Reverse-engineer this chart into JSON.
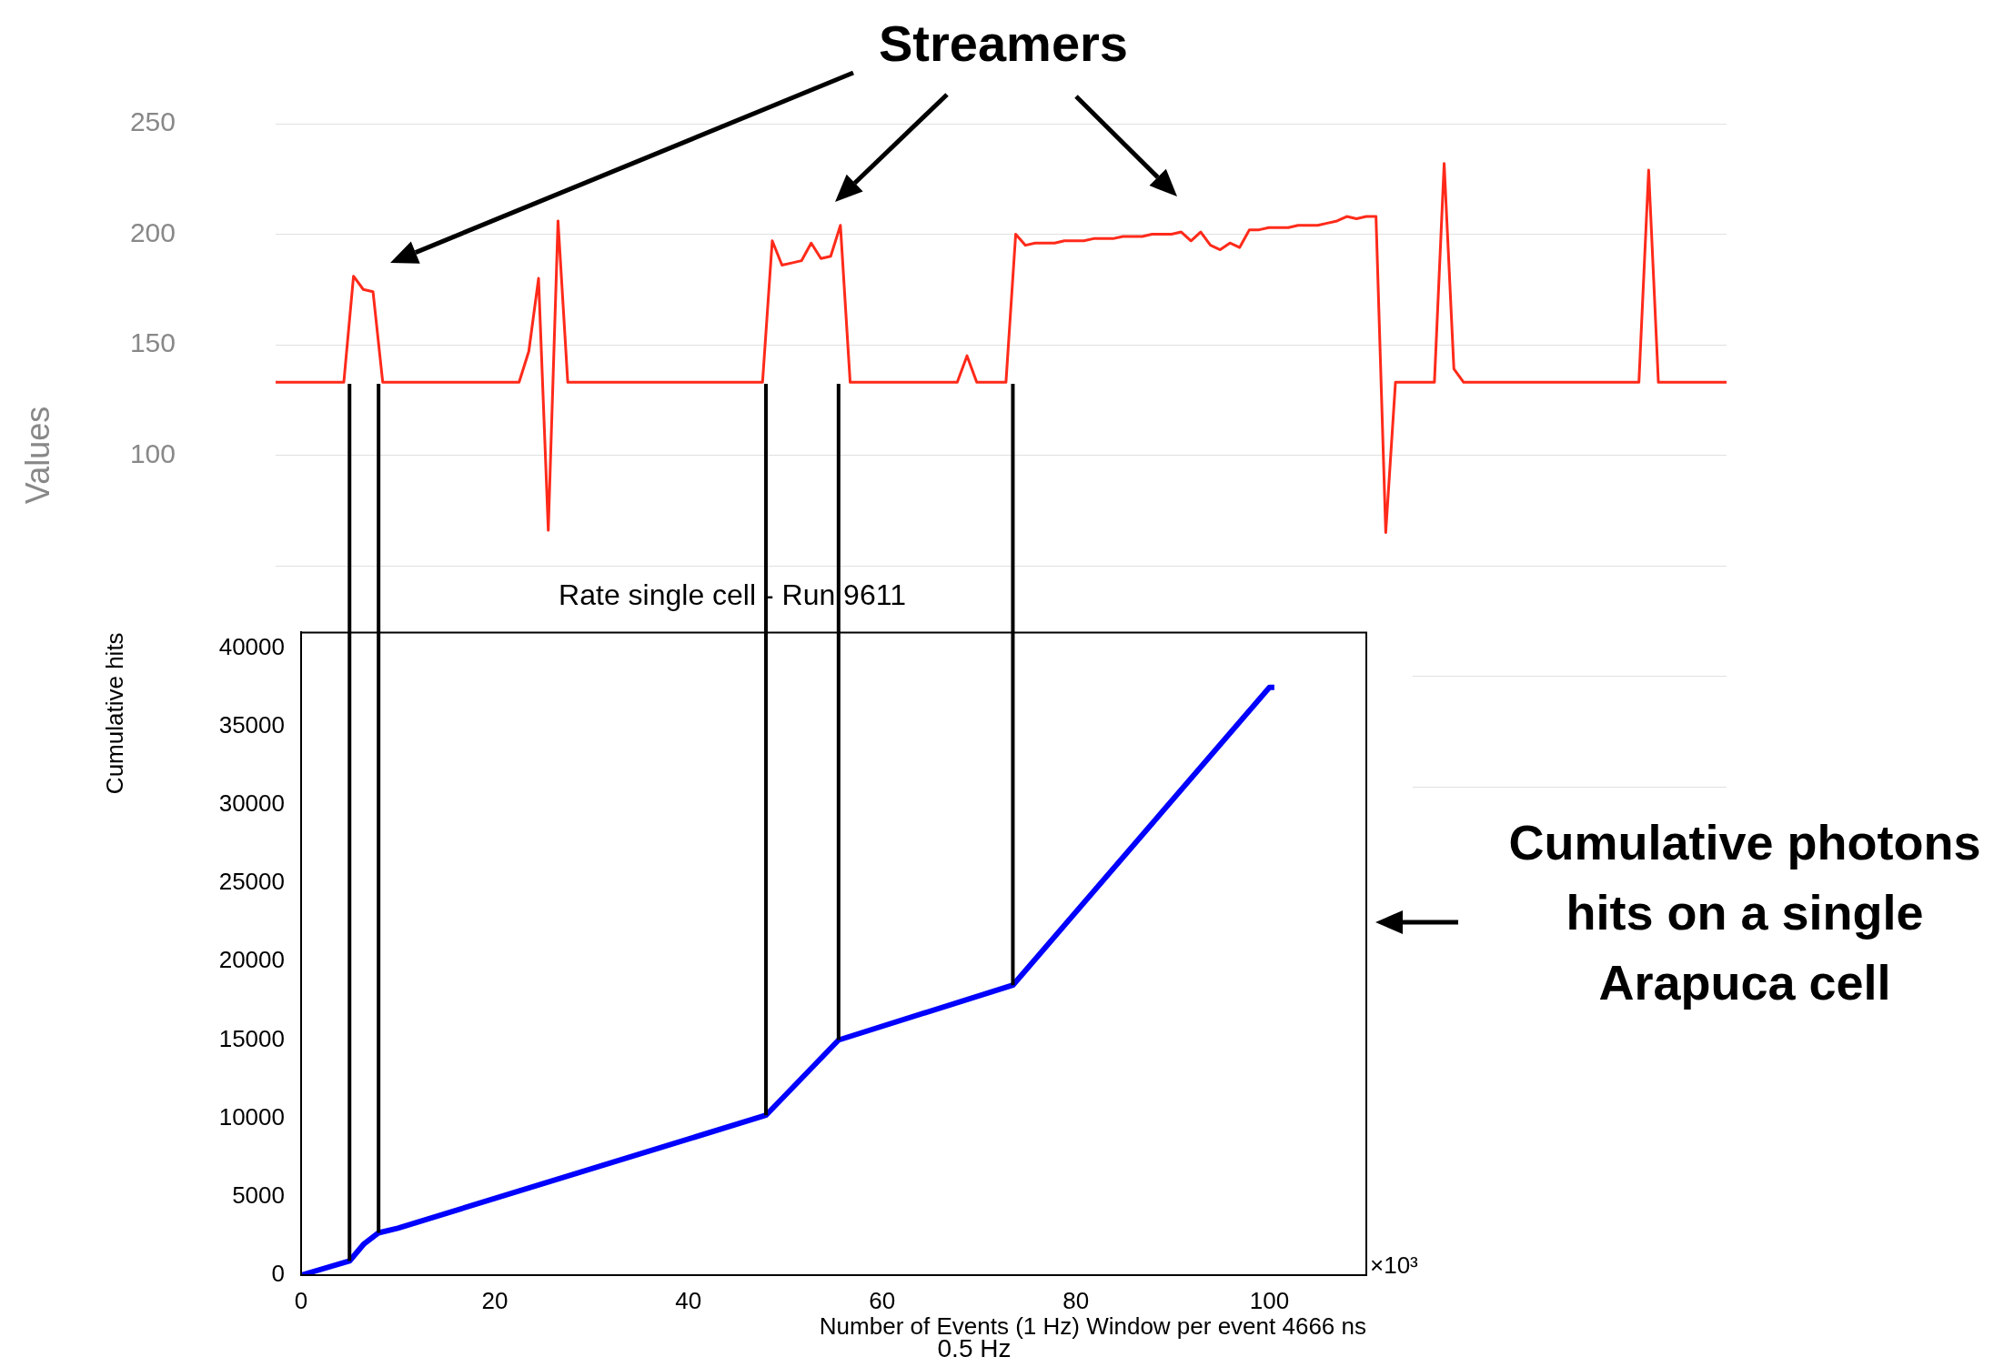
{
  "chart_data": [
    {
      "type": "line",
      "ylabel": "Values",
      "categories": [
        null,
        null,
        null,
        null,
        null,
        null,
        null,
        null,
        null,
        null,
        null,
        null,
        null,
        null,
        null,
        null,
        null,
        null,
        null,
        null,
        null,
        null,
        null,
        null,
        null,
        null,
        null,
        null,
        null,
        null,
        null,
        null,
        null,
        null,
        null,
        null,
        null,
        null,
        null,
        null,
        null,
        null,
        null,
        null,
        null,
        null,
        null,
        null,
        null,
        null,
        null,
        null,
        null,
        null,
        null,
        null,
        null,
        null,
        null,
        null,
        null,
        null,
        null,
        null,
        null,
        null,
        null,
        null,
        null,
        null,
        null,
        null,
        null,
        null,
        null,
        null,
        null,
        null,
        null,
        null,
        null,
        null,
        null,
        null,
        null,
        null,
        null,
        null,
        null,
        null,
        null,
        null,
        null,
        null,
        null,
        null,
        null,
        null,
        null,
        null,
        null,
        null,
        null,
        null,
        null,
        null,
        null,
        null,
        null,
        null,
        null,
        null,
        null,
        null,
        null,
        null,
        null,
        null,
        null,
        null,
        null,
        null,
        null,
        null,
        null,
        null,
        null,
        null,
        null,
        null,
        null,
        null,
        null,
        null,
        null,
        null,
        null,
        null,
        null,
        null,
        null,
        null,
        null,
        null,
        null,
        null,
        null,
        null,
        null,
        null
      ],
      "series": [
        {
          "color": "#ff2a1a",
          "values": [
            133,
            133,
            133,
            133,
            133,
            133,
            133,
            133,
            181,
            175,
            174,
            133,
            133,
            133,
            133,
            133,
            133,
            133,
            133,
            133,
            133,
            133,
            133,
            133,
            133,
            133,
            147,
            180,
            66,
            206,
            133,
            133,
            133,
            133,
            133,
            133,
            133,
            133,
            133,
            133,
            133,
            133,
            133,
            133,
            133,
            133,
            133,
            133,
            133,
            133,
            133,
            197,
            186,
            187,
            188,
            196,
            189,
            190,
            204,
            133,
            133,
            133,
            133,
            133,
            133,
            133,
            133,
            133,
            133,
            133,
            133,
            145,
            133,
            133,
            133,
            133,
            200,
            195,
            196,
            196,
            196,
            197,
            197,
            197,
            198,
            198,
            198,
            199,
            199,
            199,
            200,
            200,
            200,
            201,
            197,
            201,
            195,
            193,
            196,
            194,
            202,
            202,
            203,
            203,
            203,
            204,
            204,
            204,
            205,
            206,
            208,
            207,
            208,
            208,
            65,
            133,
            133,
            133,
            133,
            133,
            232,
            139,
            133,
            133,
            133,
            133,
            133,
            133,
            133,
            133,
            133,
            133,
            133,
            133,
            133,
            133,
            133,
            133,
            133,
            133,
            133,
            229,
            133,
            133,
            133,
            133,
            133,
            133,
            133,
            133
          ]
        }
      ],
      "ylim": [
        -50,
        250
      ],
      "yticks": [
        {
          "value": -50,
          "label": null
        },
        {
          "value": 0,
          "label": null
        },
        {
          "value": 50,
          "label": null
        },
        100,
        150,
        200,
        250
      ],
      "grid": "y",
      "legend": false,
      "tick_labels": "y",
      "marker": "none",
      "annotations": [
        "Streamers"
      ]
    },
    {
      "type": "line",
      "title": "Rate single cell - Run 9611",
      "xlabel": "Number of Events (1 Hz) Window per event 4666 ns",
      "ylabel": "Cumulative hits",
      "x": [
        0,
        5,
        6.5,
        8,
        10,
        48,
        55.5,
        73.5,
        100,
        100.5
      ],
      "series": [
        {
          "color": "#0000ff",
          "values": [
            0,
            900,
            2000,
            2700,
            3000,
            10200,
            15000,
            18500,
            37500,
            37500
          ]
        }
      ],
      "xlim": [
        0,
        110
      ],
      "xticks": [
        0,
        20,
        40,
        60,
        80,
        100
      ],
      "ylim": [
        0,
        41000
      ],
      "yticks": [
        0,
        5000,
        10000,
        15000,
        20000,
        25000,
        30000,
        35000,
        40000
      ],
      "grid": false,
      "legend": false,
      "marker": "none",
      "ref_lines": [
        {
          "axis": "x",
          "value": 5,
          "color": "#000000"
        },
        {
          "axis": "x",
          "value": 8,
          "color": "#000000"
        },
        {
          "axis": "x",
          "value": 48,
          "color": "#000000"
        },
        {
          "axis": "x",
          "value": 55.5,
          "color": "#000000"
        },
        {
          "axis": "x",
          "value": 73.5,
          "color": "#000000"
        }
      ],
      "annotations": [
        "×10³",
        "0.5 Hz",
        "Cumulative photons hits on a single Arapuca cell"
      ]
    }
  ]
}
